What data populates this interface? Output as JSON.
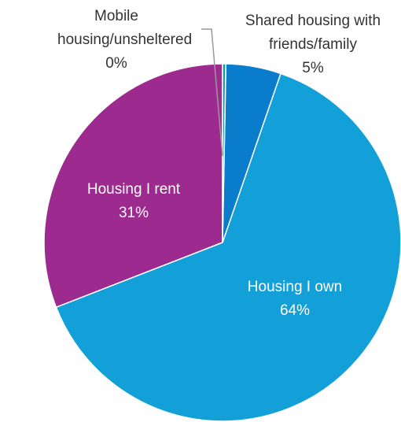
{
  "chart_data": {
    "type": "pie",
    "categories": [
      "Mobile housing/unsheltered",
      "Shared housing with friends/family",
      "Housing I own",
      "Housing I rent"
    ],
    "values": [
      0.3,
      5,
      64,
      31
    ],
    "value_labels": [
      "0%",
      "5%",
      "64%",
      "31%"
    ],
    "colors": [
      "#1e9c9c",
      "#0a7ccc",
      "#13a0d8",
      "#9c2a8f"
    ]
  }
}
